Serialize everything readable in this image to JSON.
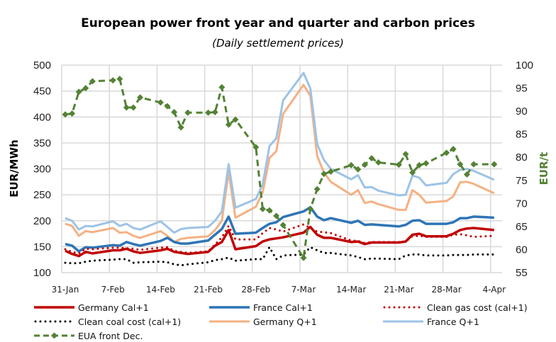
{
  "chart_data": {
    "type": "line",
    "title": "European power front year and quarter and carbon prices",
    "subtitle": "(Daily settlement prices)",
    "ylabel": "EUR/MWh",
    "y2label": "EUR/t",
    "ylim": [
      100,
      500
    ],
    "y2lim": [
      55,
      100
    ],
    "yticks": [
      "100",
      "150",
      "200",
      "250",
      "300",
      "350",
      "400",
      "450",
      "500"
    ],
    "y2ticks": [
      "55",
      "60",
      "65",
      "70",
      "75",
      "80",
      "85",
      "90",
      "95",
      "100"
    ],
    "xticks": [
      "31-Jan",
      "7-Feb",
      "14-Feb",
      "21-Feb",
      "28-Feb",
      "7-Mar",
      "14-Mar",
      "21-Mar",
      "28-Mar",
      "4-Apr"
    ],
    "xtick_days": [
      0,
      7,
      14,
      21,
      28,
      35,
      42,
      49,
      56,
      63
    ],
    "x_days_since_31_jan": [
      0,
      1,
      2,
      3,
      4,
      7,
      8,
      9,
      10,
      11,
      14,
      15,
      16,
      17,
      18,
      21,
      22,
      23,
      24,
      25,
      28,
      29,
      30,
      31,
      32,
      35,
      36,
      37,
      38,
      39,
      42,
      43,
      44,
      45,
      46,
      49,
      50,
      51,
      52,
      53,
      56,
      57,
      58,
      59,
      60,
      63
    ],
    "grid": true,
    "legend_position": "bottom",
    "series": [
      {
        "name": "Germany Cal+1",
        "axis": "left",
        "color": "#C00000",
        "style": "solid",
        "width": 3.5,
        "values": [
          142,
          136,
          132,
          140,
          137,
          143,
          143,
          146,
          141,
          138,
          143,
          146,
          140,
          138,
          136,
          140,
          152,
          159,
          182,
          145,
          151,
          160,
          164,
          166,
          168,
          177,
          188,
          173,
          167,
          167,
          159,
          160,
          155,
          158,
          158,
          158,
          160,
          173,
          175,
          170,
          170,
          175,
          182,
          185,
          186,
          182
        ]
      },
      {
        "name": "France Cal+1",
        "axis": "left",
        "color": "#2E75B6",
        "style": "solid",
        "width": 3.5,
        "values": [
          155,
          152,
          141,
          149,
          148,
          153,
          152,
          159,
          155,
          152,
          161,
          167,
          159,
          156,
          156,
          162,
          173,
          184,
          208,
          175,
          177,
          186,
          194,
          197,
          207,
          218,
          226,
          208,
          201,
          205,
          196,
          200,
          192,
          193,
          192,
          189,
          192,
          200,
          201,
          194,
          194,
          197,
          205,
          205,
          208,
          206
        ]
      },
      {
        "name": "Clean gas cost (cal+1)",
        "axis": "left",
        "color": "#C00000",
        "style": "dotted",
        "width": 3,
        "values": [
          145,
          140,
          137,
          146,
          145,
          148,
          148,
          147,
          146,
          144,
          148,
          149,
          142,
          140,
          138,
          141,
          154,
          168,
          190,
          164,
          164,
          176,
          186,
          183,
          179,
          193,
          186,
          179,
          178,
          176,
          162,
          161,
          157,
          159,
          159,
          159,
          160,
          170,
          171,
          169,
          169,
          173,
          174,
          172,
          169,
          171
        ]
      },
      {
        "name": "Clean coal cost (cal+1)",
        "axis": "left",
        "color": "#000000",
        "style": "dotted",
        "width": 3,
        "values": [
          119,
          118,
          118,
          121,
          123,
          125,
          126,
          126,
          119,
          120,
          121,
          120,
          116,
          114,
          116,
          120,
          124,
          126,
          129,
          123,
          126,
          126,
          149,
          126,
          133,
          135,
          149,
          143,
          138,
          138,
          133,
          130,
          126,
          127,
          127,
          126,
          133,
          135,
          135,
          133,
          133,
          134,
          134,
          134,
          135,
          135
        ]
      },
      {
        "name": "Germany Q+1",
        "axis": "left",
        "color": "#F4B183",
        "style": "solid",
        "width": 3,
        "values": [
          194,
          190,
          171,
          180,
          178,
          186,
          177,
          178,
          171,
          167,
          180,
          171,
          159,
          165,
          167,
          170,
          182,
          200,
          294,
          206,
          227,
          255,
          321,
          334,
          406,
          462,
          441,
          325,
          293,
          275,
          250,
          259,
          234,
          237,
          232,
          221,
          221,
          259,
          250,
          235,
          238,
          247,
          274,
          275,
          271,
          253
        ]
      },
      {
        "name": "France Q+1",
        "axis": "left",
        "color": "#9DC3E6",
        "style": "solid",
        "width": 3,
        "values": [
          205,
          200,
          183,
          190,
          189,
          199,
          190,
          194,
          186,
          183,
          199,
          188,
          177,
          184,
          186,
          188,
          200,
          218,
          309,
          225,
          242,
          270,
          344,
          359,
          432,
          485,
          455,
          348,
          317,
          300,
          280,
          288,
          264,
          265,
          258,
          249,
          250,
          287,
          283,
          268,
          273,
          290,
          298,
          300,
          296,
          279
        ]
      },
      {
        "name": "EUA front Dec.",
        "axis": "right",
        "color": "#548235",
        "style": "dashed-marker",
        "width": 3,
        "values": [
          89.3,
          89.5,
          94.2,
          95.0,
          96.5,
          96.7,
          97.0,
          90.8,
          90.8,
          93.0,
          91.9,
          91.1,
          89.8,
          86.5,
          89.7,
          89.7,
          89.8,
          95.2,
          87.1,
          88.2,
          82.2,
          68.8,
          68.5,
          67.3,
          65.3,
          58.2,
          68.8,
          73.1,
          76.4,
          76.9,
          78.3,
          77.4,
          78.4,
          79.8,
          78.9,
          78.4,
          80.7,
          76.7,
          78.3,
          78.7,
          81.0,
          81.8,
          78.5,
          76.3,
          78.5,
          78.5
        ]
      }
    ]
  }
}
